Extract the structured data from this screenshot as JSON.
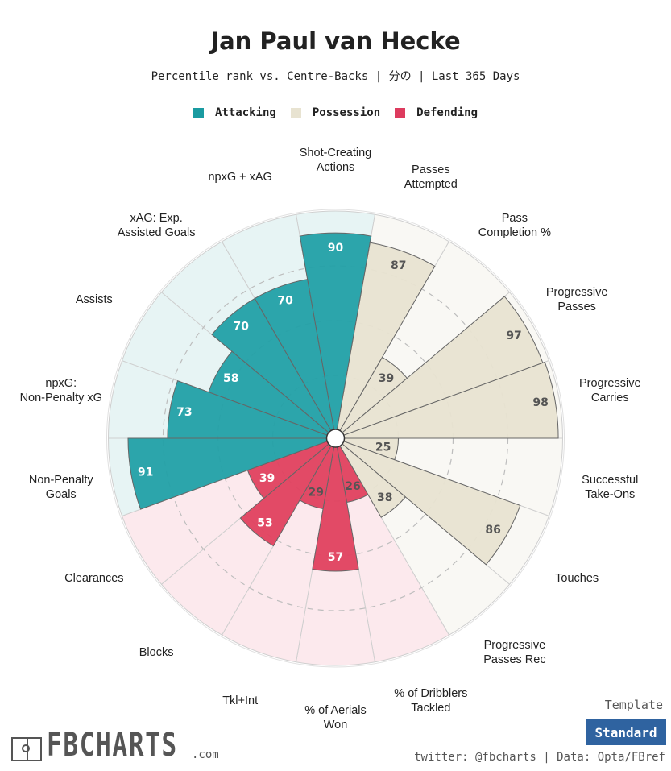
{
  "title": "Jan Paul van Hecke",
  "subtitle": "Percentile rank vs. Centre-Backs | 分の | Last 365 Days",
  "legend": [
    {
      "label": "Attacking",
      "color": "#1a9ba1"
    },
    {
      "label": "Possession",
      "color": "#e8e3d1"
    },
    {
      "label": "Defending",
      "color": "#dd3b5e"
    }
  ],
  "colors": {
    "attacking": "#22a0a6",
    "attacking_bg": "#e7f4f4",
    "possession": "#e8e3d1",
    "possession_bg": "#f9f8f4",
    "defending": "#e0415f",
    "defending_bg": "#fce9ed"
  },
  "chart_data": {
    "type": "polar-bar",
    "title": "Jan Paul van Hecke",
    "rlim": [
      0,
      100
    ],
    "grid": true,
    "legend_position": "top-center",
    "series": [
      {
        "name": "Attacking",
        "categories": [
          "Non-Penalty Goals",
          "npxG: Non-Penalty xG",
          "Assists",
          "xAG: Exp. Assisted Goals",
          "npxG + xAG",
          "Shot-Creating Actions"
        ],
        "values": [
          91,
          73,
          58,
          70,
          70,
          90
        ]
      },
      {
        "name": "Possession",
        "categories": [
          "Passes Attempted",
          "Pass Completion %",
          "Progressive Passes",
          "Progressive Carries",
          "Successful Take-Ons",
          "Touches",
          "Progressive Passes Rec"
        ],
        "values": [
          87,
          39,
          97,
          98,
          25,
          86,
          38
        ]
      },
      {
        "name": "Defending",
        "categories": [
          "% of Dribblers Tackled",
          "% of Aerials Won",
          "Tkl+Int",
          "Blocks",
          "Clearances"
        ],
        "values": [
          26,
          57,
          29,
          53,
          39
        ]
      }
    ],
    "slices": [
      {
        "label": "Shot-Creating Actions",
        "value": 90,
        "group": "attacking"
      },
      {
        "label": "Passes Attempted",
        "value": 87,
        "group": "possession"
      },
      {
        "label": "Pass Completion %",
        "value": 39,
        "group": "possession"
      },
      {
        "label": "Progressive Passes",
        "value": 97,
        "group": "possession"
      },
      {
        "label": "Progressive Carries",
        "value": 98,
        "group": "possession"
      },
      {
        "label": "Successful Take-Ons",
        "value": 25,
        "group": "possession"
      },
      {
        "label": "Touches",
        "value": 86,
        "group": "possession"
      },
      {
        "label": "Progressive Passes Rec",
        "value": 38,
        "group": "possession"
      },
      {
        "label": "% of Dribblers Tackled",
        "value": 26,
        "group": "defending"
      },
      {
        "label": "% of Aerials Won",
        "value": 57,
        "group": "defending"
      },
      {
        "label": "Tkl+Int",
        "value": 29,
        "group": "defending"
      },
      {
        "label": "Blocks",
        "value": 53,
        "group": "defending"
      },
      {
        "label": "Clearances",
        "value": 39,
        "group": "defending"
      },
      {
        "label": "Non-Penalty Goals",
        "value": 91,
        "group": "attacking"
      },
      {
        "label": "npxG: Non-Penalty xG",
        "value": 73,
        "group": "attacking"
      },
      {
        "label": "Assists",
        "value": 58,
        "group": "attacking"
      },
      {
        "label": "xAG: Exp. Assisted Goals",
        "value": 70,
        "group": "attacking"
      },
      {
        "label": "npxG + xAG",
        "value": 70,
        "group": "attacking"
      }
    ]
  },
  "footer": {
    "logo_text": "FBCHARTS",
    "logo_suffix": ".com",
    "template_label": "Template",
    "template_button": "Standard",
    "credit": "twitter: @fbcharts | Data: Opta/FBref"
  }
}
